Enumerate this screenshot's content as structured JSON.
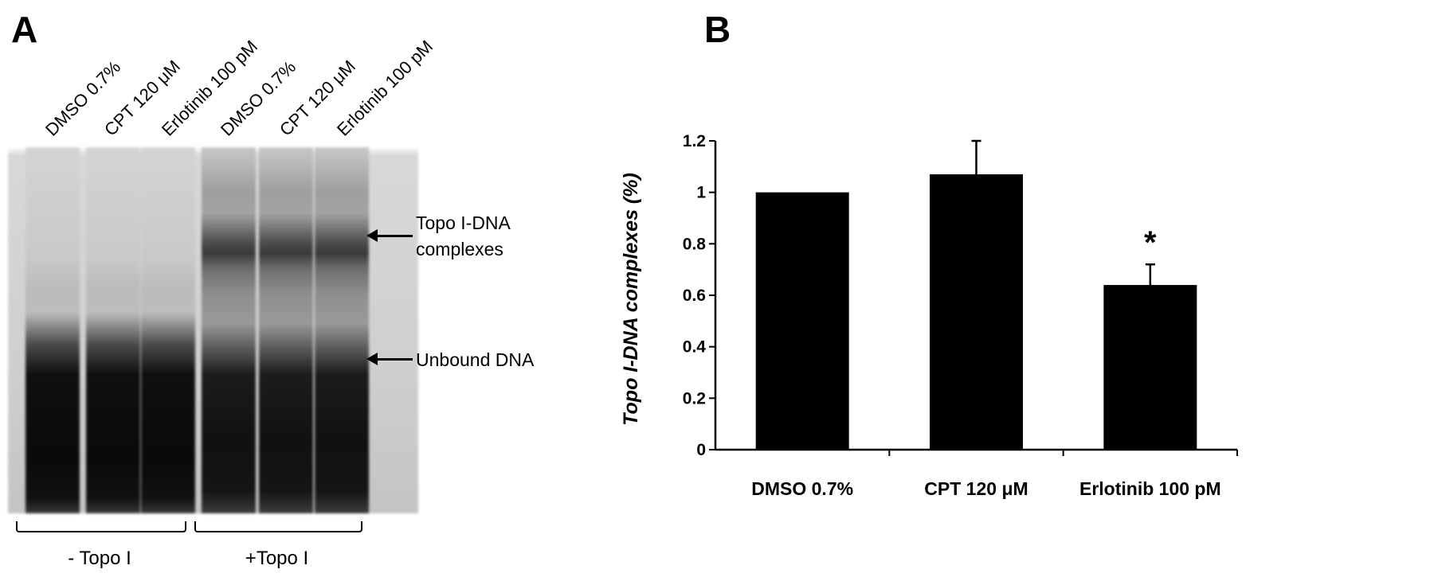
{
  "panel_a": {
    "letter": "A",
    "lane_labels": [
      "DMSO 0.7%",
      "CPT 120 μM",
      "Erlotinib 100 pM",
      "DMSO 0.7%",
      "CPT 120 μM",
      "Erlotinib 100 pM"
    ],
    "band_labels": {
      "complexes": "Topo I-DNA\ncomplexes",
      "unbound": "Unbound DNA"
    },
    "group_labels": [
      "- Topo I",
      "+Topo I"
    ]
  },
  "panel_b": {
    "letter": "B"
  },
  "chart_data": {
    "type": "bar",
    "categories": [
      "DMSO 0.7%",
      "CPT 120 μM",
      "Erlotinib 100 pM"
    ],
    "values": [
      1.0,
      1.07,
      0.64
    ],
    "errors": [
      0,
      0.13,
      0.08
    ],
    "annotations": [
      "",
      "",
      "*"
    ],
    "ylabel": "Topo I-DNA complexes  (%)",
    "ylim": [
      0,
      1.2
    ],
    "yticks": [
      "0",
      "0.2",
      "0.4",
      "0.6",
      "0.8",
      "1",
      "1.2"
    ],
    "bar_color": "#000000",
    "grid": false
  }
}
